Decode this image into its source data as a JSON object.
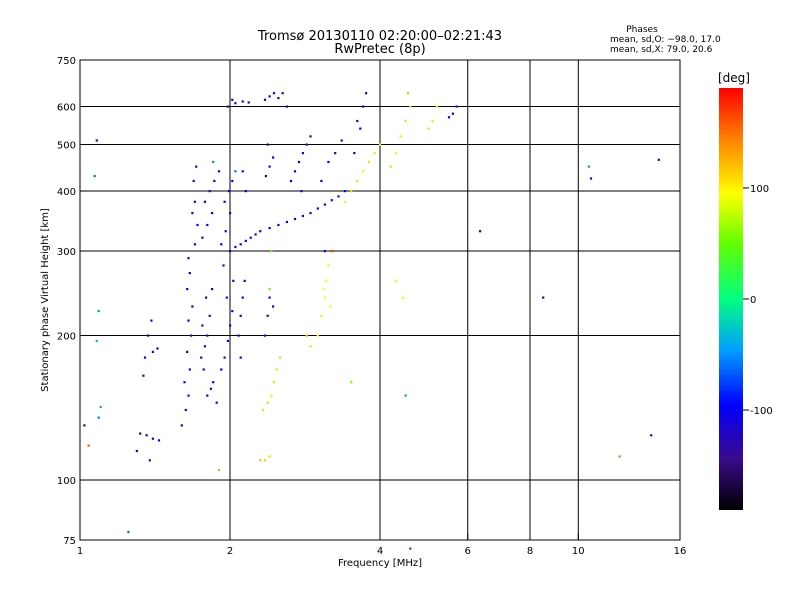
{
  "header": {
    "title": "Tromsø 20130110 02:20:00–02:21:43",
    "subtitle": "RwPretec (8p)"
  },
  "phases_box": {
    "heading": "Phases",
    "line_o": "mean, sd,O: −98.0, 17.0",
    "line_x": "mean, sd,X:  79.0, 20.6"
  },
  "colorbar": {
    "label": "[deg]",
    "range": [
      -190,
      190
    ],
    "ticks": [
      {
        "value": 100,
        "label": "100"
      },
      {
        "value": 0,
        "label": "0"
      },
      {
        "value": -100,
        "label": "-100"
      }
    ]
  },
  "chart_data": {
    "type": "scatter",
    "title": "Tromsø 20130110 02:20:00–02:21:43",
    "subtitle": "RwPretec (8p)",
    "xlabel": "Frequency [MHz]",
    "ylabel": "Stationary phase Virtual Height [km]",
    "xscale": "log",
    "yscale": "log",
    "xlim": [
      1,
      16
    ],
    "ylim": [
      75,
      750
    ],
    "xticks": [
      {
        "value": 1,
        "label": "1"
      },
      {
        "value": 2,
        "label": "2"
      },
      {
        "value": 4,
        "label": "4"
      },
      {
        "value": 6,
        "label": "6"
      },
      {
        "value": 8,
        "label": "8"
      },
      {
        "value": 10,
        "label": "10"
      },
      {
        "value": 16,
        "label": "16"
      }
    ],
    "yticks": [
      {
        "value": 75,
        "label": "75"
      },
      {
        "value": 100,
        "label": "100"
      },
      {
        "value": 200,
        "label": "200"
      },
      {
        "value": 300,
        "label": "300"
      },
      {
        "value": 400,
        "label": "400"
      },
      {
        "value": 500,
        "label": "500"
      },
      {
        "value": 600,
        "label": "600"
      },
      {
        "value": 750,
        "label": "750"
      }
    ],
    "xgrid": [
      2,
      4,
      6,
      8,
      10
    ],
    "ygrid": [
      100,
      200,
      300,
      400,
      500,
      600
    ],
    "grid": true,
    "color_encoding": "phase [deg]",
    "points": [
      [
        1.02,
        130,
        -110
      ],
      [
        1.04,
        118,
        160
      ],
      [
        1.08,
        510,
        -100
      ],
      [
        1.07,
        430,
        -60
      ],
      [
        1.09,
        225,
        -50
      ],
      [
        1.08,
        195,
        -30
      ],
      [
        1.1,
        142,
        -40
      ],
      [
        1.09,
        135,
        -60
      ],
      [
        1.25,
        78,
        -60
      ],
      [
        1.32,
        125,
        -120
      ],
      [
        1.36,
        124,
        -110
      ],
      [
        1.4,
        122,
        -105
      ],
      [
        1.44,
        121,
        -100
      ],
      [
        1.3,
        115,
        -100
      ],
      [
        1.38,
        110,
        -120
      ],
      [
        1.35,
        180,
        -100
      ],
      [
        1.4,
        185,
        -105
      ],
      [
        1.43,
        188,
        -95
      ],
      [
        1.37,
        200,
        -110
      ],
      [
        1.39,
        215,
        -90
      ],
      [
        1.34,
        165,
        -100
      ],
      [
        1.6,
        130,
        -100
      ],
      [
        1.63,
        140,
        -105
      ],
      [
        1.65,
        150,
        -98
      ],
      [
        1.62,
        160,
        -110
      ],
      [
        1.66,
        170,
        -100
      ],
      [
        1.64,
        185,
        -95
      ],
      [
        1.67,
        200,
        -105
      ],
      [
        1.65,
        215,
        -100
      ],
      [
        1.68,
        230,
        -110
      ],
      [
        1.64,
        250,
        -100
      ],
      [
        1.66,
        270,
        -95
      ],
      [
        1.65,
        290,
        -100
      ],
      [
        1.7,
        310,
        -95
      ],
      [
        1.72,
        340,
        -100
      ],
      [
        1.68,
        360,
        -105
      ],
      [
        1.7,
        380,
        -100
      ],
      [
        1.69,
        420,
        -110
      ],
      [
        1.71,
        450,
        -98
      ],
      [
        1.75,
        180,
        -100
      ],
      [
        1.78,
        190,
        -105
      ],
      [
        1.8,
        200,
        -95
      ],
      [
        1.76,
        210,
        -100
      ],
      [
        1.82,
        220,
        -110
      ],
      [
        1.79,
        240,
        -100
      ],
      [
        1.84,
        250,
        -95
      ],
      [
        1.77,
        170,
        -100
      ],
      [
        1.85,
        160,
        -105
      ],
      [
        1.8,
        150,
        -100
      ],
      [
        1.88,
        145,
        -98
      ],
      [
        1.83,
        155,
        -110
      ],
      [
        1.76,
        320,
        -100
      ],
      [
        1.8,
        340,
        -95
      ],
      [
        1.84,
        360,
        -105
      ],
      [
        1.78,
        380,
        -100
      ],
      [
        1.82,
        400,
        -110
      ],
      [
        1.86,
        420,
        -100
      ],
      [
        1.9,
        440,
        -95
      ],
      [
        1.85,
        460,
        -55
      ],
      [
        1.92,
        170,
        -100
      ],
      [
        1.95,
        180,
        -105
      ],
      [
        1.98,
        195,
        -95
      ],
      [
        2.0,
        210,
        -100
      ],
      [
        2.02,
        225,
        -110
      ],
      [
        1.97,
        240,
        -100
      ],
      [
        2.03,
        260,
        -95
      ],
      [
        1.94,
        280,
        -100
      ],
      [
        2.0,
        300,
        -105
      ],
      [
        1.92,
        310,
        -100
      ],
      [
        1.96,
        330,
        -95
      ],
      [
        2.0,
        360,
        -110
      ],
      [
        1.95,
        380,
        -100
      ],
      [
        1.99,
        400,
        -105
      ],
      [
        2.02,
        420,
        -100
      ],
      [
        2.05,
        440,
        -60
      ],
      [
        1.9,
        105,
        130
      ],
      [
        2.05,
        306,
        -100
      ],
      [
        2.1,
        310,
        -105
      ],
      [
        2.15,
        315,
        -95
      ],
      [
        2.2,
        320,
        -100
      ],
      [
        2.25,
        325,
        -110
      ],
      [
        2.3,
        330,
        -100
      ],
      [
        2.4,
        335,
        -95
      ],
      [
        2.5,
        340,
        -100
      ],
      [
        2.6,
        345,
        -105
      ],
      [
        2.7,
        350,
        -100
      ],
      [
        2.8,
        355,
        -95
      ],
      [
        2.9,
        360,
        -100
      ],
      [
        3.0,
        368,
        -110
      ],
      [
        3.1,
        375,
        -100
      ],
      [
        3.2,
        383,
        -95
      ],
      [
        3.3,
        390,
        -100
      ],
      [
        3.4,
        400,
        -105
      ],
      [
        2.1,
        220,
        -100
      ],
      [
        2.12,
        240,
        -95
      ],
      [
        2.08,
        200,
        -110
      ],
      [
        2.14,
        260,
        -100
      ],
      [
        2.1,
        180,
        -105
      ],
      [
        2.12,
        440,
        -100
      ],
      [
        2.15,
        400,
        -95
      ],
      [
        1.98,
        600,
        -100
      ],
      [
        2.05,
        610,
        -105
      ],
      [
        2.12,
        615,
        -95
      ],
      [
        2.18,
        612,
        -100
      ],
      [
        2.02,
        620,
        -110
      ],
      [
        2.3,
        110,
        120
      ],
      [
        2.35,
        110,
        115
      ],
      [
        2.4,
        112,
        110
      ],
      [
        2.33,
        140,
        110
      ],
      [
        2.38,
        145,
        115
      ],
      [
        2.42,
        150,
        105
      ],
      [
        2.45,
        160,
        110
      ],
      [
        2.48,
        170,
        110
      ],
      [
        2.52,
        180,
        115
      ],
      [
        2.4,
        250,
        50
      ],
      [
        2.42,
        300,
        40
      ],
      [
        2.35,
        200,
        -100
      ],
      [
        2.38,
        220,
        -105
      ],
      [
        2.4,
        240,
        -95
      ],
      [
        2.44,
        230,
        -100
      ],
      [
        2.36,
        430,
        -100
      ],
      [
        2.4,
        450,
        -105
      ],
      [
        2.44,
        470,
        -95
      ],
      [
        2.38,
        500,
        -100
      ],
      [
        2.35,
        620,
        -100
      ],
      [
        2.4,
        630,
        -105
      ],
      [
        2.45,
        640,
        -95
      ],
      [
        2.5,
        625,
        -100
      ],
      [
        2.55,
        640,
        -110
      ],
      [
        2.6,
        600,
        -100
      ],
      [
        2.65,
        420,
        -100
      ],
      [
        2.7,
        440,
        -105
      ],
      [
        2.75,
        460,
        -95
      ],
      [
        2.8,
        480,
        -100
      ],
      [
        2.85,
        500,
        -110
      ],
      [
        2.9,
        520,
        -100
      ],
      [
        2.78,
        400,
        -100
      ],
      [
        2.85,
        200,
        120
      ],
      [
        2.9,
        190,
        110
      ],
      [
        3.0,
        200,
        90
      ],
      [
        3.05,
        220,
        100
      ],
      [
        3.1,
        240,
        95
      ],
      [
        3.12,
        260,
        90
      ],
      [
        3.15,
        280,
        100
      ],
      [
        3.08,
        250,
        95
      ],
      [
        3.18,
        230,
        90
      ],
      [
        3.1,
        300,
        -100
      ],
      [
        3.2,
        300,
        170
      ],
      [
        3.05,
        420,
        -100
      ],
      [
        3.15,
        460,
        -95
      ],
      [
        3.25,
        480,
        -100
      ],
      [
        3.35,
        510,
        -105
      ],
      [
        3.5,
        160,
        60
      ],
      [
        3.4,
        380,
        100
      ],
      [
        3.5,
        400,
        110
      ],
      [
        3.6,
        420,
        105
      ],
      [
        3.7,
        440,
        100
      ],
      [
        3.8,
        460,
        110
      ],
      [
        3.9,
        480,
        105
      ],
      [
        4.0,
        500,
        100
      ],
      [
        3.55,
        480,
        -100
      ],
      [
        3.65,
        540,
        -95
      ],
      [
        3.7,
        600,
        -100
      ],
      [
        3.75,
        640,
        -105
      ],
      [
        3.6,
        560,
        -110
      ],
      [
        4.2,
        450,
        110
      ],
      [
        4.3,
        480,
        100
      ],
      [
        4.4,
        520,
        105
      ],
      [
        4.5,
        560,
        110
      ],
      [
        4.6,
        600,
        100
      ],
      [
        4.55,
        640,
        120
      ],
      [
        4.3,
        260,
        100
      ],
      [
        4.45,
        240,
        100
      ],
      [
        4.5,
        150,
        -50
      ],
      [
        4.6,
        72,
        -70
      ],
      [
        5.0,
        540,
        110
      ],
      [
        5.1,
        560,
        105
      ],
      [
        5.2,
        600,
        100
      ],
      [
        5.6,
        580,
        -100
      ],
      [
        5.7,
        600,
        -90
      ],
      [
        5.5,
        570,
        -100
      ],
      [
        6.35,
        330,
        -100
      ],
      [
        8.5,
        240,
        -100
      ],
      [
        10.5,
        450,
        -50
      ],
      [
        10.6,
        425,
        -100
      ],
      [
        12.1,
        112,
        150
      ],
      [
        14.0,
        124,
        -120
      ],
      [
        14.5,
        465,
        -100
      ]
    ]
  }
}
